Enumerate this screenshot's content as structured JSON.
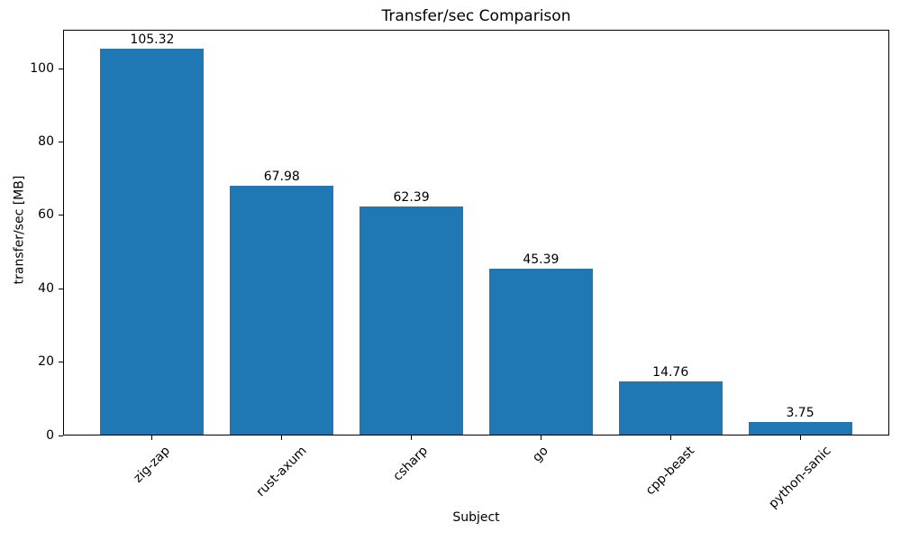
{
  "chart_data": {
    "type": "bar",
    "title": "Transfer/sec Comparison",
    "xlabel": "Subject",
    "ylabel": "transfer/sec [MB]",
    "categories": [
      "zig-zap",
      "rust-axum",
      "csharp",
      "go",
      "cpp-beast",
      "python-sanic"
    ],
    "values": [
      105.32,
      67.98,
      62.39,
      45.39,
      14.76,
      3.75
    ],
    "bar_labels": [
      "105.32",
      "67.98",
      "62.39",
      "45.39",
      "14.76",
      "3.75"
    ],
    "yticks": [
      0,
      20,
      40,
      60,
      80,
      100
    ],
    "ylim": [
      0,
      110.6
    ],
    "x_tick_rotation_deg": 45,
    "bar_color": "#1f77b4",
    "text_color": "#000000",
    "background_color": "#ffffff",
    "grid": false,
    "legend": false
  }
}
